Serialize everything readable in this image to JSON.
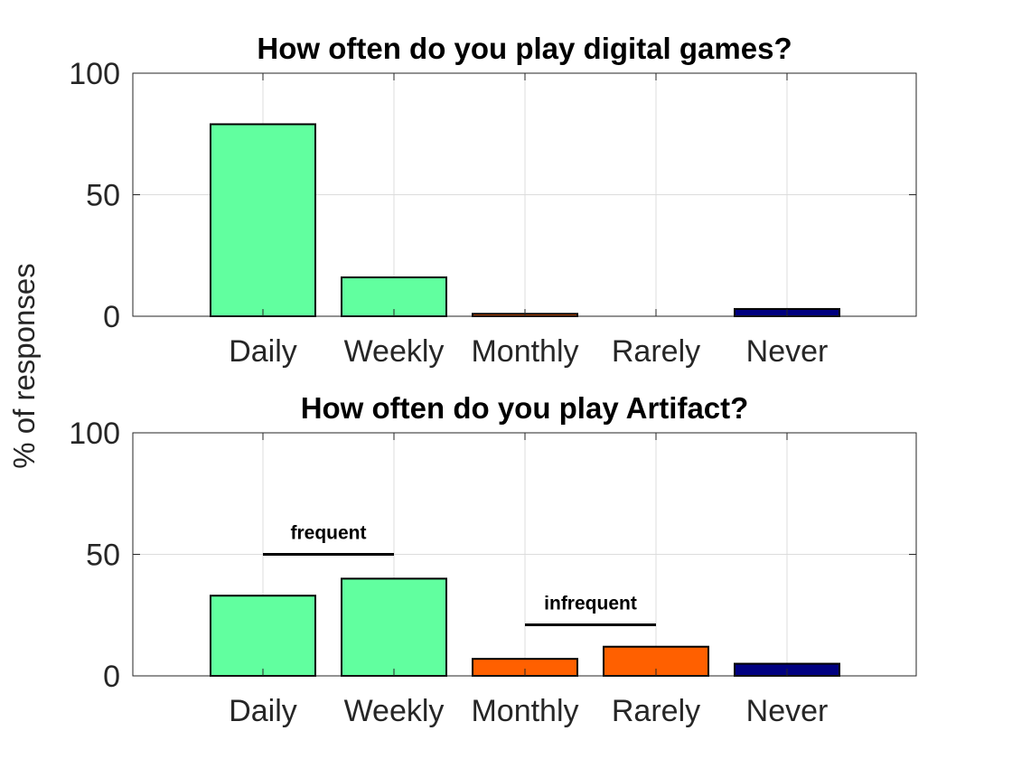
{
  "ylabel": "%  of responses",
  "colors": {
    "frequent": "#61ff9f",
    "infrequent": "#ff6000",
    "never": "#000080"
  },
  "chart_data": [
    {
      "type": "bar",
      "title": "How often do you play digital games?",
      "categories": [
        "Daily",
        "Weekly",
        "Monthly",
        "Rarely",
        "Never"
      ],
      "values": [
        79,
        16,
        1,
        0,
        3
      ],
      "bar_colors": [
        "frequent",
        "frequent",
        "infrequent",
        "infrequent",
        "never"
      ],
      "ylim": [
        0,
        100
      ],
      "yticks": [
        0,
        50,
        100
      ],
      "ytick_labels": [
        "0",
        "50",
        "100"
      ],
      "grid": true,
      "annotations": []
    },
    {
      "type": "bar",
      "title": "How often do you play Artifact?",
      "categories": [
        "Daily",
        "Weekly",
        "Monthly",
        "Rarely",
        "Never"
      ],
      "values": [
        33,
        40,
        7,
        12,
        5
      ],
      "bar_colors": [
        "frequent",
        "frequent",
        "infrequent",
        "infrequent",
        "never"
      ],
      "ylim": [
        0,
        100
      ],
      "yticks": [
        0,
        50,
        100
      ],
      "ytick_labels": [
        "0",
        "50",
        "100"
      ],
      "grid": true,
      "annotations": [
        {
          "text": "frequent",
          "from": 0,
          "to": 1,
          "y": 50
        },
        {
          "text": "infrequent",
          "from": 2,
          "to": 3,
          "y": 21
        }
      ]
    }
  ]
}
